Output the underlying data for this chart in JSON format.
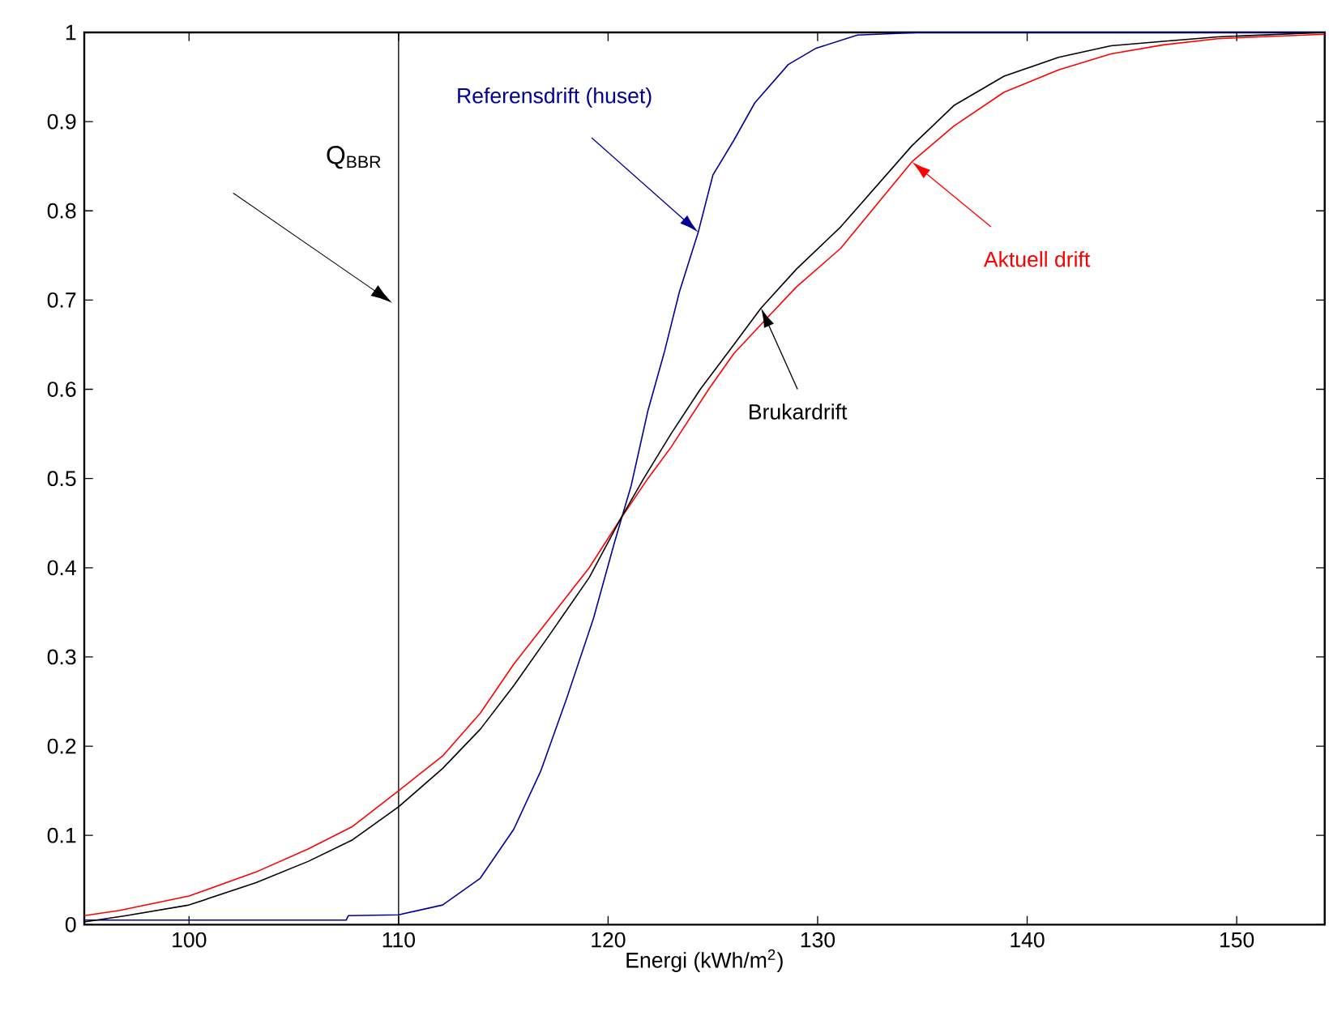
{
  "chart_data": {
    "type": "line",
    "xlabel": "Energi (kWh/m$^{2}$)",
    "xlim": [
      95,
      154.2
    ],
    "ylim": [
      0,
      1
    ],
    "xticks": [
      100,
      110,
      120,
      130,
      140,
      150
    ],
    "yticks": [
      0,
      0.1,
      0.2,
      0.3,
      0.4,
      0.5,
      0.6,
      0.7,
      0.8,
      0.9,
      1
    ],
    "line_style": "solid",
    "ref_lines": [
      {
        "axis": "x",
        "value": 110,
        "label": "Q$_{BBR}$",
        "color": "#000000"
      }
    ],
    "series": [
      {
        "name": "Referensdrift (huset)",
        "color": "#000099",
        "x": [
          95,
          107.5,
          107.6,
          110,
          112.1,
          113.9,
          115.5,
          116.8,
          118,
          119.3,
          120.3,
          121.1,
          121.9,
          122.7,
          123.4,
          124.3,
          125,
          126,
          127,
          128.6,
          129.9,
          131.9,
          135,
          154.2
        ],
        "values": [
          0.005,
          0.005,
          0.01,
          0.011,
          0.022,
          0.052,
          0.107,
          0.173,
          0.252,
          0.343,
          0.428,
          0.492,
          0.576,
          0.643,
          0.709,
          0.776,
          0.84,
          0.879,
          0.921,
          0.964,
          0.982,
          0.997,
          1.0,
          1.0
        ]
      },
      {
        "name": "Aktuell drift",
        "color": "#ff0000",
        "x": [
          95,
          96.7,
          100,
          103.2,
          105.7,
          107.8,
          110,
          112.1,
          113.9,
          115.5,
          117.3,
          119.1,
          120.6,
          121.9,
          123,
          124.8,
          126,
          127.55,
          129,
          131.1,
          134.5,
          136.5,
          138.9,
          141.5,
          144,
          146.5,
          149.1,
          154.2
        ],
        "values": [
          0.01,
          0.016,
          0.032,
          0.059,
          0.085,
          0.11,
          0.15,
          0.189,
          0.237,
          0.292,
          0.346,
          0.4,
          0.455,
          0.5,
          0.535,
          0.6,
          0.64,
          0.679,
          0.715,
          0.758,
          0.855,
          0.895,
          0.933,
          0.958,
          0.976,
          0.986,
          0.993,
          0.998
        ]
      },
      {
        "name": "Brukardrift",
        "color": "#000000",
        "x": [
          95,
          97,
          100,
          103.2,
          105.7,
          107.8,
          110,
          112.1,
          113.9,
          115.5,
          117.3,
          119.1,
          120.6,
          121.7,
          123,
          124.4,
          126,
          127.3,
          129,
          131.1,
          134.5,
          136.5,
          138.9,
          141.5,
          144,
          146.5,
          149.1,
          154.2
        ],
        "values": [
          0.003,
          0.01,
          0.022,
          0.047,
          0.071,
          0.095,
          0.132,
          0.175,
          0.219,
          0.268,
          0.328,
          0.389,
          0.455,
          0.5,
          0.55,
          0.6,
          0.65,
          0.691,
          0.735,
          0.782,
          0.873,
          0.918,
          0.951,
          0.972,
          0.985,
          0.99,
          0.995,
          1.0
        ]
      }
    ]
  }
}
